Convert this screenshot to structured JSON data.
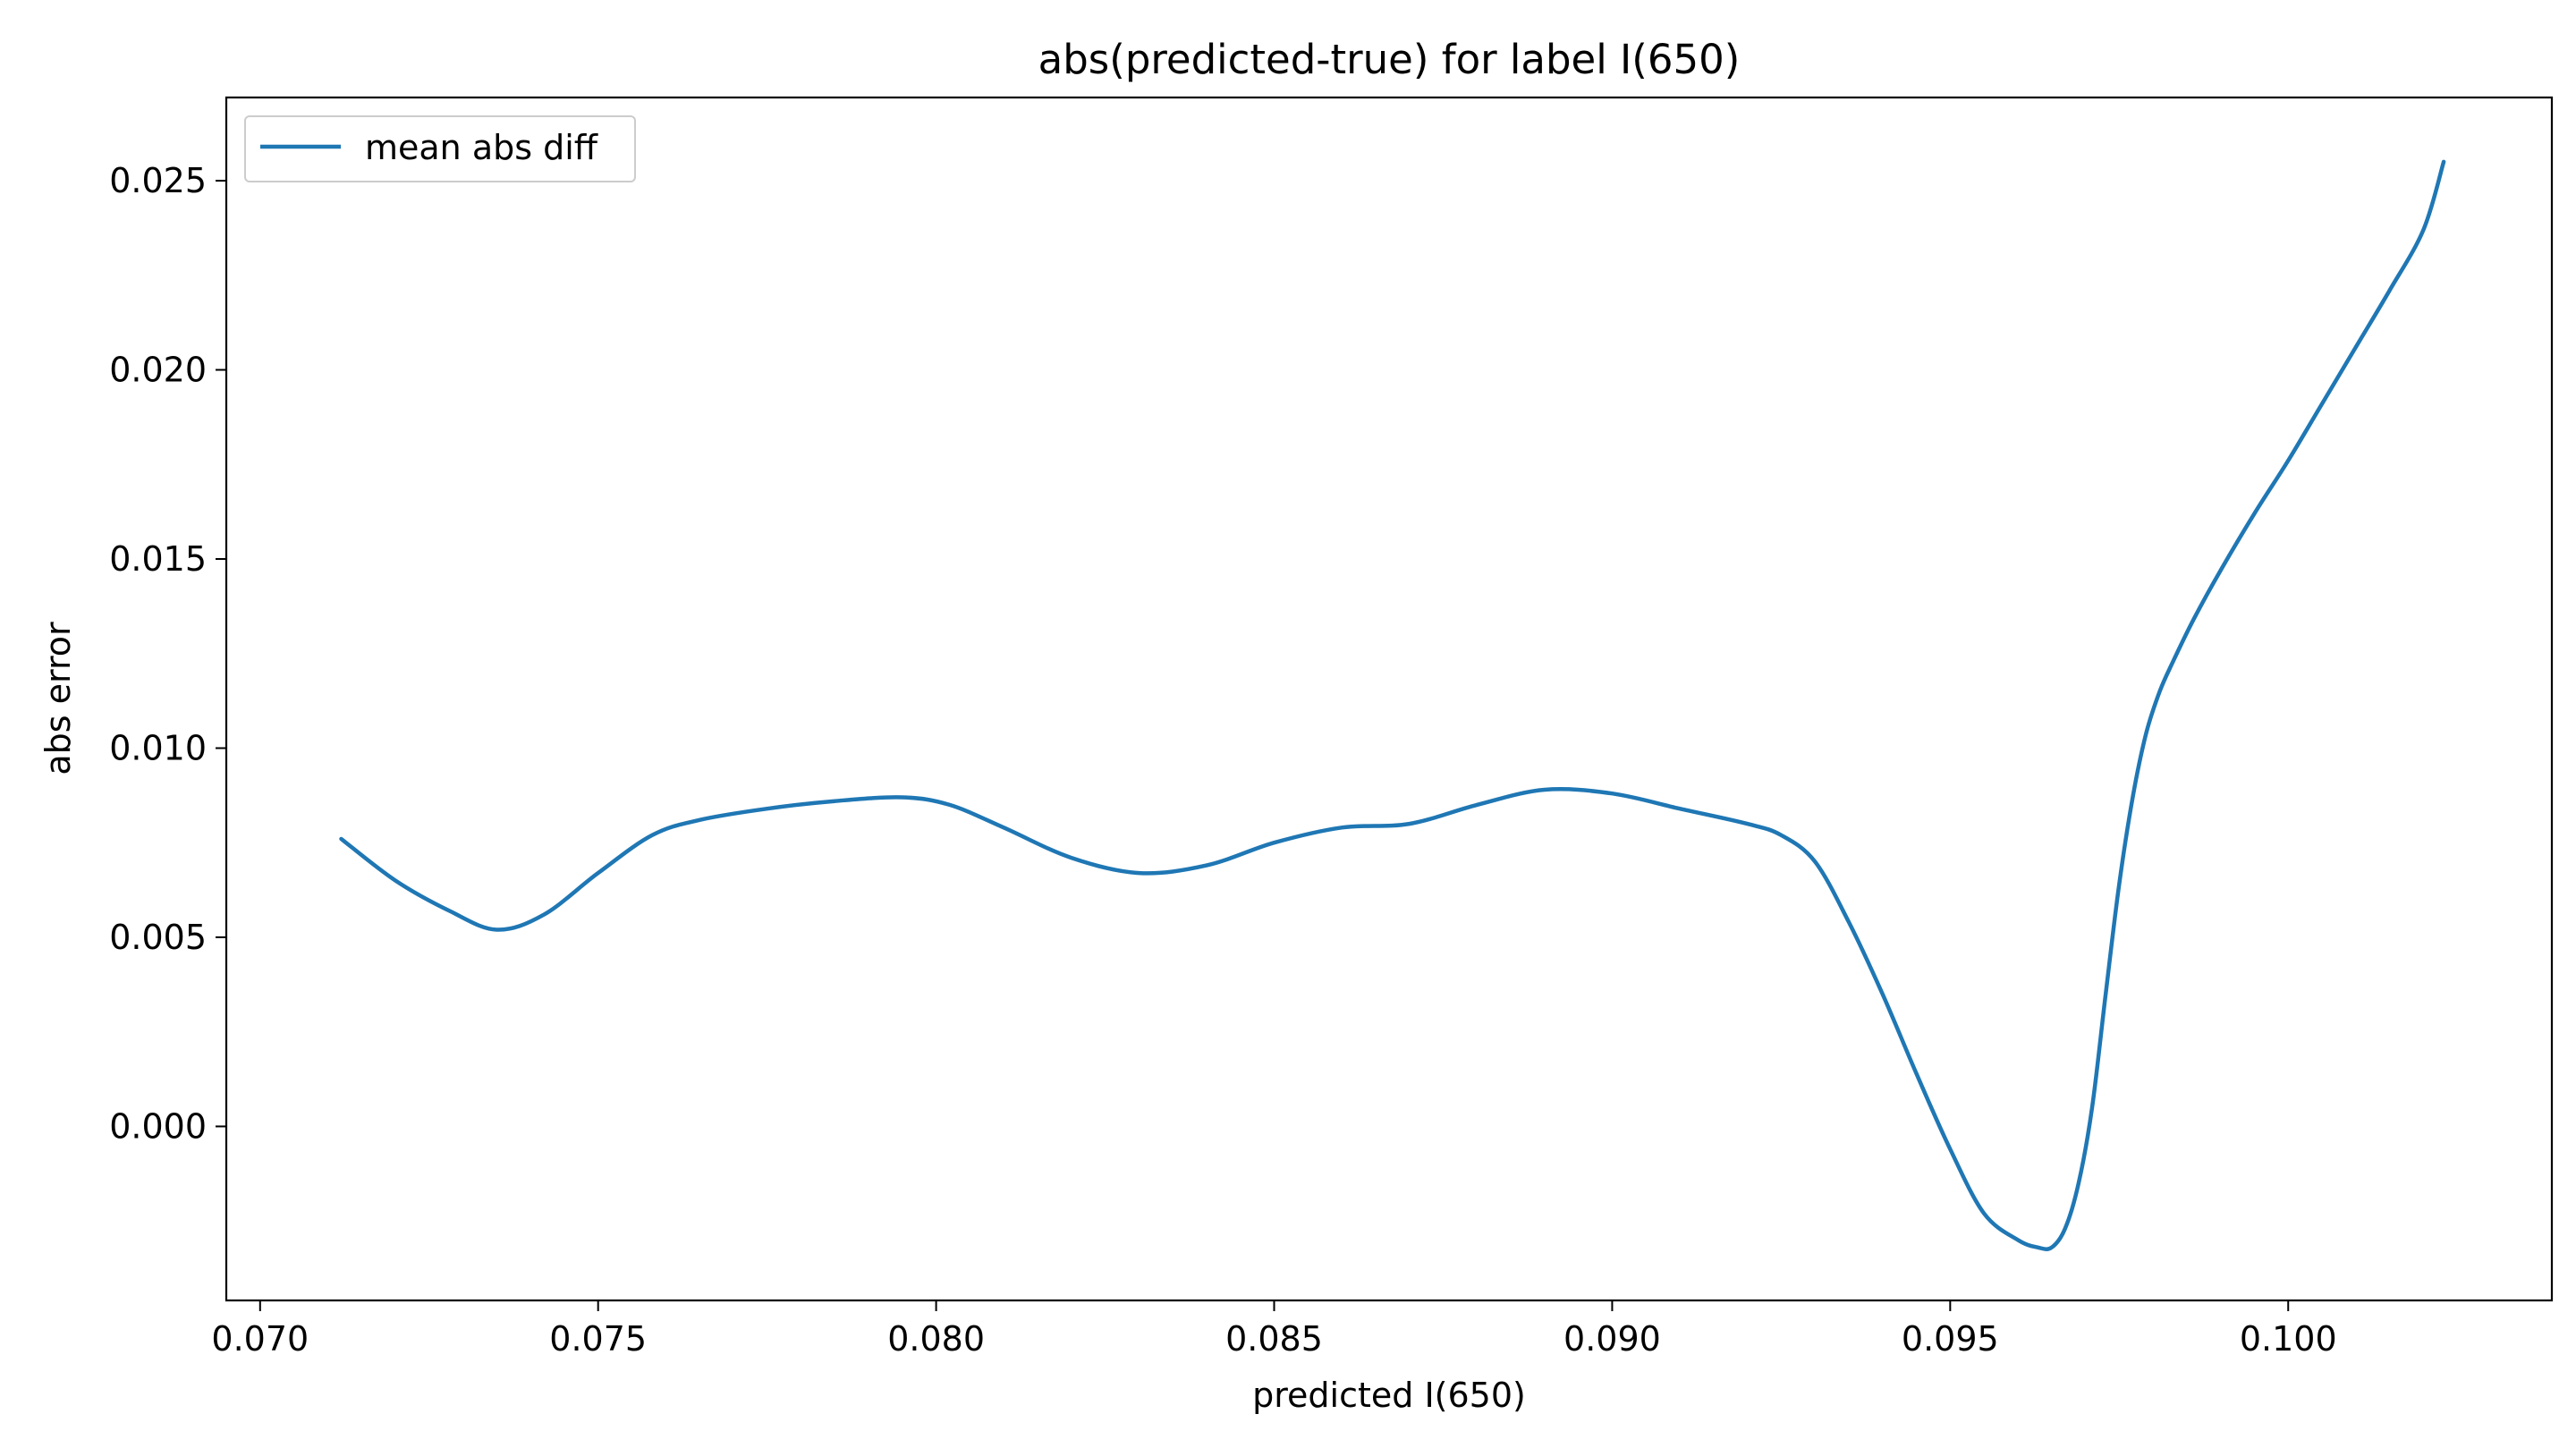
{
  "chart_data": {
    "type": "line",
    "title": "abs(predicted-true) for label I(650)",
    "xlabel": "predicted I(650)",
    "ylabel": "abs error",
    "xlim": [
      0.0695,
      0.1039
    ],
    "ylim": [
      -0.0046,
      0.0272
    ],
    "xticks": [
      0.07,
      0.075,
      0.08,
      0.085,
      0.09,
      0.095,
      0.1
    ],
    "yticks": [
      0.0,
      0.005,
      0.01,
      0.015,
      0.02,
      0.025
    ],
    "xtick_labels": [
      "0.070",
      "0.075",
      "0.080",
      "0.085",
      "0.090",
      "0.095",
      "0.100"
    ],
    "ytick_labels": [
      "0.000",
      "0.005",
      "0.010",
      "0.015",
      "0.020",
      "0.025"
    ],
    "legend_position": "top-left",
    "grid": false,
    "series": [
      {
        "name": "mean abs diff",
        "color": "#1f77b4",
        "x": [
          0.0712,
          0.072,
          0.0728,
          0.0735,
          0.0742,
          0.075,
          0.0758,
          0.0765,
          0.0775,
          0.0785,
          0.0795,
          0.0802,
          0.081,
          0.082,
          0.083,
          0.084,
          0.085,
          0.086,
          0.087,
          0.088,
          0.089,
          0.09,
          0.091,
          0.092,
          0.0925,
          0.093,
          0.0935,
          0.094,
          0.0945,
          0.095,
          0.0955,
          0.096,
          0.0963,
          0.0965,
          0.0967,
          0.0969,
          0.0971,
          0.0973,
          0.0975,
          0.0977,
          0.0979,
          0.0981,
          0.0983,
          0.0986,
          0.099,
          0.0995,
          0.1,
          0.1005,
          0.101,
          0.1015,
          0.102,
          0.1023
        ],
        "y": [
          0.0076,
          0.0065,
          0.0057,
          0.0052,
          0.0056,
          0.0067,
          0.0077,
          0.0081,
          0.0084,
          0.0086,
          0.0087,
          0.0085,
          0.0079,
          0.0071,
          0.0067,
          0.0069,
          0.0075,
          0.0079,
          0.008,
          0.0085,
          0.0089,
          0.0088,
          0.0084,
          0.008,
          0.0077,
          0.007,
          0.0054,
          0.0035,
          0.0014,
          -0.0006,
          -0.0023,
          -0.003,
          -0.0032,
          -0.0032,
          -0.0027,
          -0.0015,
          0.0005,
          0.0035,
          0.0064,
          0.0087,
          0.0104,
          0.0115,
          0.0123,
          0.0134,
          0.0147,
          0.0162,
          0.0176,
          0.0191,
          0.0206,
          0.0221,
          0.0237,
          0.0255
        ]
      }
    ]
  }
}
